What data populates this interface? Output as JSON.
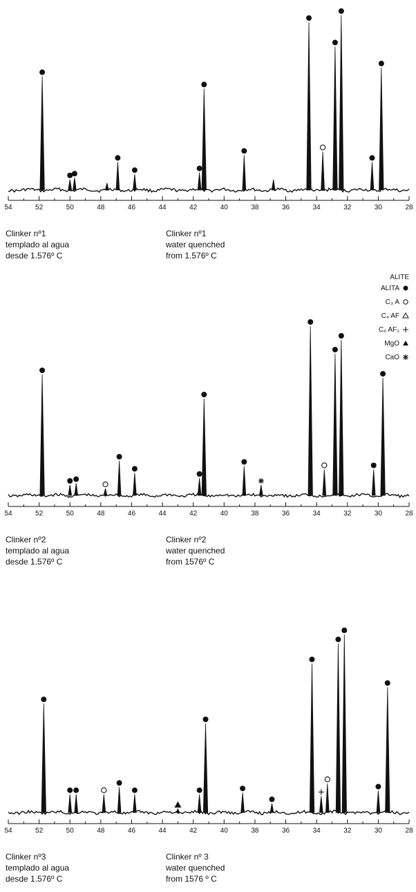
{
  "legend": {
    "header": "ALITE",
    "items": [
      {
        "label": "ALITA",
        "symbol": "filled-circle"
      },
      {
        "label": "C₃ A",
        "symbol": "open-circle"
      },
      {
        "label": "C₄ AF",
        "symbol": "open-triangle"
      },
      {
        "label": "C₆ AF₂",
        "symbol": "plus"
      },
      {
        "label": "MgO",
        "symbol": "filled-triangle"
      },
      {
        "label": "CaO",
        "symbol": "asterisk"
      }
    ]
  },
  "chart_data": [
    {
      "type": "line",
      "x_direction": "descending",
      "xlim": [
        54,
        28
      ],
      "x_ticks": [
        54,
        52,
        50,
        48,
        46,
        44,
        42,
        40,
        38,
        36,
        34,
        32,
        30,
        28
      ],
      "x_tick_labels": [
        "54",
        "52",
        "50",
        "48",
        "46",
        "44",
        "42",
        "40",
        "38",
        "36",
        "34",
        "32",
        "30",
        "28"
      ],
      "caption_es": [
        "Clinker nº1",
        "templado al agua",
        "desde 1.576º C"
      ],
      "caption_en": [
        "Clinker nº1",
        "water quenched",
        "from 1.576º C"
      ],
      "peaks": [
        {
          "x": 51.8,
          "h": 0.65,
          "marker": "filled-circle"
        },
        {
          "x": 50.0,
          "h": 0.06,
          "marker": "filled-circle"
        },
        {
          "x": 49.7,
          "h": 0.07,
          "marker": "filled-circle"
        },
        {
          "x": 47.6,
          "h": 0.04,
          "marker": ""
        },
        {
          "x": 46.9,
          "h": 0.16,
          "marker": "filled-circle"
        },
        {
          "x": 45.8,
          "h": 0.09,
          "marker": "filled-circle"
        },
        {
          "x": 41.6,
          "h": 0.1,
          "marker": "filled-circle"
        },
        {
          "x": 41.3,
          "h": 0.58,
          "marker": "filled-circle"
        },
        {
          "x": 38.7,
          "h": 0.2,
          "marker": "filled-circle"
        },
        {
          "x": 36.8,
          "h": 0.06,
          "marker": ""
        },
        {
          "x": 34.5,
          "h": 0.96,
          "marker": "filled-circle"
        },
        {
          "x": 33.6,
          "h": 0.22,
          "marker": "open-circle"
        },
        {
          "x": 32.8,
          "h": 0.82,
          "marker": "filled-circle"
        },
        {
          "x": 32.4,
          "h": 1.0,
          "marker": "filled-circle"
        },
        {
          "x": 30.4,
          "h": 0.16,
          "marker": "filled-circle"
        },
        {
          "x": 29.8,
          "h": 0.7,
          "marker": "filled-circle"
        }
      ]
    },
    {
      "type": "line",
      "x_direction": "descending",
      "xlim": [
        54,
        28
      ],
      "x_ticks": [
        54,
        52,
        50,
        48,
        46,
        44,
        42,
        40,
        38,
        36,
        34,
        32,
        30,
        28
      ],
      "x_tick_labels": [
        "54",
        "52",
        "50",
        "48",
        "46",
        "44",
        "42",
        "40",
        "38",
        "36",
        "34",
        "32",
        "30",
        "28"
      ],
      "caption_es": [
        "Clinker nº2",
        "templado al agua",
        "desde 1.576º C"
      ],
      "caption_en": [
        "Clinker nº2",
        "water quenched",
        "from 1576º C"
      ],
      "peaks": [
        {
          "x": 51.8,
          "h": 0.7,
          "marker": "filled-circle"
        },
        {
          "x": 50.0,
          "h": 0.06,
          "marker": "filled-circle"
        },
        {
          "x": 49.6,
          "h": 0.07,
          "marker": "filled-circle"
        },
        {
          "x": 47.7,
          "h": 0.04,
          "marker": "open-circle"
        },
        {
          "x": 46.8,
          "h": 0.2,
          "marker": "filled-circle"
        },
        {
          "x": 45.8,
          "h": 0.13,
          "marker": "filled-circle"
        },
        {
          "x": 41.6,
          "h": 0.1,
          "marker": "filled-circle"
        },
        {
          "x": 41.3,
          "h": 0.56,
          "marker": "filled-circle"
        },
        {
          "x": 38.7,
          "h": 0.17,
          "marker": "filled-circle"
        },
        {
          "x": 37.6,
          "h": 0.06,
          "marker": "asterisk"
        },
        {
          "x": 34.4,
          "h": 0.98,
          "marker": "filled-circle"
        },
        {
          "x": 33.5,
          "h": 0.15,
          "marker": "open-circle"
        },
        {
          "x": 32.8,
          "h": 0.82,
          "marker": "filled-circle"
        },
        {
          "x": 32.4,
          "h": 0.9,
          "marker": "filled-circle"
        },
        {
          "x": 30.3,
          "h": 0.15,
          "marker": "filled-circle"
        },
        {
          "x": 29.7,
          "h": 0.68,
          "marker": "filled-circle"
        }
      ]
    },
    {
      "type": "line",
      "x_direction": "descending",
      "xlim": [
        54,
        28
      ],
      "x_ticks": [
        54,
        52,
        50,
        48,
        46,
        44,
        42,
        40,
        38,
        36,
        34,
        32,
        30,
        28
      ],
      "x_tick_labels": [
        "54",
        "52",
        "50",
        "48",
        "46",
        "44",
        "42",
        "40",
        "38",
        "36",
        "34",
        "32",
        "30",
        "28"
      ],
      "caption_es": [
        "Clinker nº3",
        "templado al agua",
        "desde 1.576º C"
      ],
      "caption_en": [
        "Clinker nº 3",
        "water quenched",
        "from 1576 º C"
      ],
      "peaks": [
        {
          "x": 51.7,
          "h": 0.6,
          "marker": "filled-circle"
        },
        {
          "x": 50.0,
          "h": 0.1,
          "marker": "filled-circle"
        },
        {
          "x": 49.6,
          "h": 0.1,
          "marker": "filled-circle"
        },
        {
          "x": 47.8,
          "h": 0.1,
          "marker": "open-circle"
        },
        {
          "x": 46.8,
          "h": 0.14,
          "marker": "filled-circle"
        },
        {
          "x": 45.8,
          "h": 0.1,
          "marker": "filled-circle"
        },
        {
          "x": 43.0,
          "h": 0.02,
          "marker": "filled-triangle"
        },
        {
          "x": 41.6,
          "h": 0.1,
          "marker": "filled-circle"
        },
        {
          "x": 41.2,
          "h": 0.49,
          "marker": "filled-circle"
        },
        {
          "x": 38.8,
          "h": 0.11,
          "marker": "filled-circle"
        },
        {
          "x": 36.9,
          "h": 0.05,
          "marker": "filled-circle"
        },
        {
          "x": 34.3,
          "h": 0.82,
          "marker": "filled-circle"
        },
        {
          "x": 33.7,
          "h": 0.09,
          "marker": "plus"
        },
        {
          "x": 33.3,
          "h": 0.16,
          "marker": "open-circle"
        },
        {
          "x": 32.6,
          "h": 0.93,
          "marker": "filled-circle"
        },
        {
          "x": 32.2,
          "h": 0.98,
          "marker": "filled-circle"
        },
        {
          "x": 30.0,
          "h": 0.12,
          "marker": "filled-circle"
        },
        {
          "x": 29.4,
          "h": 0.69,
          "marker": "filled-circle"
        }
      ]
    }
  ]
}
